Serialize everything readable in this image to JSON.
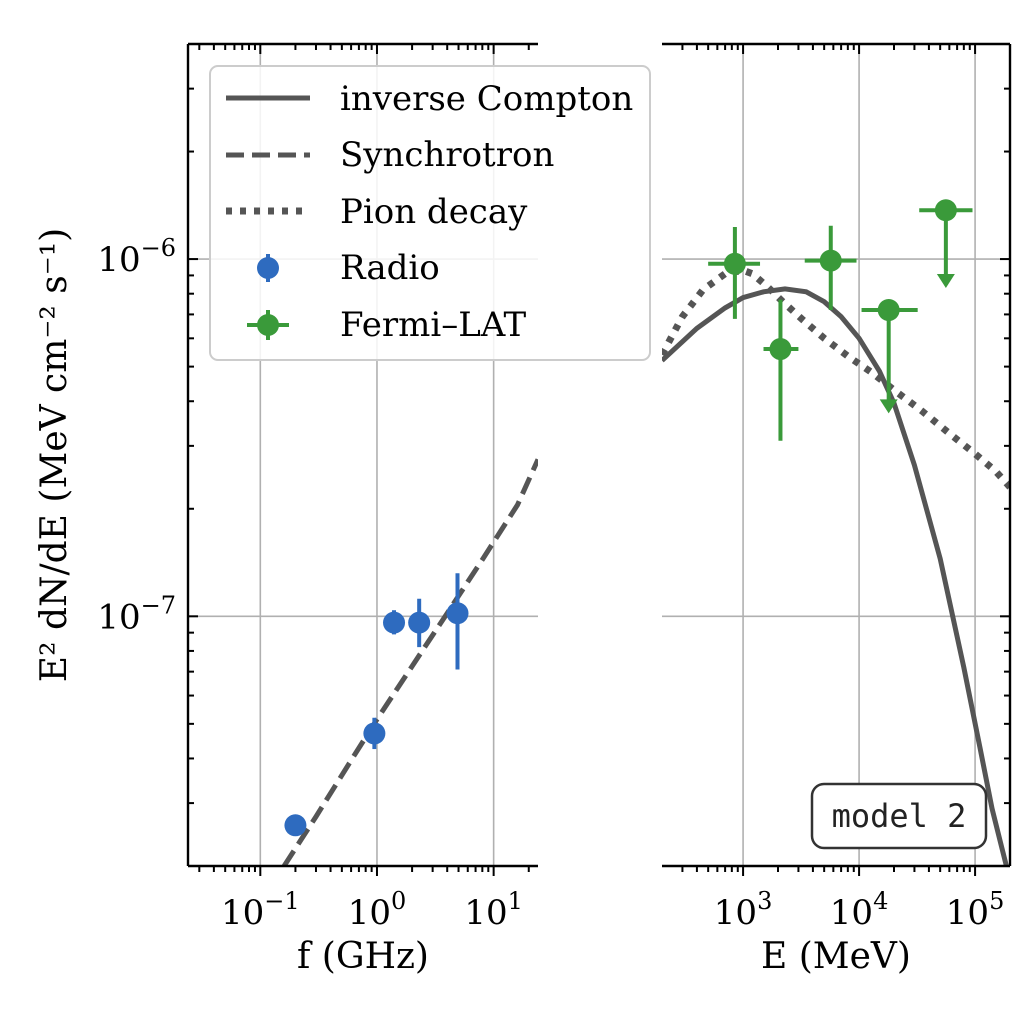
{
  "chart_data": [
    {
      "type": "scatter",
      "panel": "left",
      "xlabel": "f (GHz)",
      "ylabel": "E² dN/dE (MeV cm⁻² s⁻¹)",
      "xscale": "log",
      "yscale": "log",
      "xlim": [
        0.024,
        24
      ],
      "ylim": [
        2e-08,
        4e-06
      ],
      "x_ticks": [
        {
          "value": 0.1,
          "base": "10",
          "exp": "−1"
        },
        {
          "value": 1,
          "base": "10",
          "exp": "0"
        },
        {
          "value": 10,
          "base": "10",
          "exp": "1"
        }
      ],
      "y_ticks": [
        {
          "value": 1e-06,
          "base": "10",
          "exp": "−6"
        },
        {
          "value": 1e-07,
          "base": "10",
          "exp": "−7"
        }
      ],
      "grid": true,
      "series": [
        {
          "name": "Radio",
          "kind": "errorbar",
          "color": "#2e6bbf",
          "points": [
            {
              "x": 0.2,
              "y": 2.6e-08,
              "ylo": 2.6e-08,
              "yhi": 2.6e-08
            },
            {
              "x": 0.95,
              "y": 4.7e-08,
              "ylo": 4.25e-08,
              "yhi": 5.2e-08
            },
            {
              "x": 1.4,
              "y": 9.6e-08,
              "ylo": 8.9e-08,
              "yhi": 1.04e-07
            },
            {
              "x": 2.3,
              "y": 9.6e-08,
              "ylo": 8.2e-08,
              "yhi": 1.12e-07
            },
            {
              "x": 4.9,
              "y": 1.02e-07,
              "ylo": 7.1e-08,
              "yhi": 1.32e-07
            }
          ]
        },
        {
          "name": "Synchrotron",
          "kind": "line",
          "style": "dashed",
          "color": "#555555",
          "x": [
            0.16,
            0.3,
            0.6,
            1.0,
            2.0,
            4.0,
            8.0,
            16.0,
            24.0
          ],
          "y": [
            2e-08,
            2.75e-08,
            3.95e-08,
            5.15e-08,
            7.25e-08,
            1.02e-07,
            1.44e-07,
            2.05e-07,
            2.75e-07
          ]
        }
      ]
    },
    {
      "type": "scatter",
      "panel": "right",
      "xlabel": "E (MeV)",
      "xscale": "log",
      "yscale": "log",
      "xlim": [
        200,
        200000
      ],
      "ylim": [
        2e-08,
        4e-06
      ],
      "x_ticks": [
        {
          "value": 1000,
          "base": "10",
          "exp": "3"
        },
        {
          "value": 10000,
          "base": "10",
          "exp": "4"
        },
        {
          "value": 100000,
          "base": "10",
          "exp": "5"
        }
      ],
      "grid": true,
      "series": [
        {
          "name": "Fermi–LAT",
          "kind": "errorbar",
          "color": "#3a9a3a",
          "points": [
            {
              "x": 850,
              "y": 9.7e-07,
              "xlo": 500,
              "xhi": 1400,
              "ylo": 6.8e-07,
              "yhi": 1.23e-06,
              "upper_limit": false
            },
            {
              "x": 2100,
              "y": 5.6e-07,
              "xlo": 1500,
              "xhi": 3000,
              "ylo": 3.1e-07,
              "yhi": 7.7e-07,
              "upper_limit": false
            },
            {
              "x": 5700,
              "y": 9.9e-07,
              "xlo": 3400,
              "xhi": 9500,
              "ylo": 7.2e-07,
              "yhi": 1.24e-06,
              "upper_limit": false
            },
            {
              "x": 18000,
              "y": 7.2e-07,
              "xlo": 10500,
              "xhi": 32000,
              "upper_limit": true,
              "arrow_to": 3.7e-07
            },
            {
              "x": 56000,
              "y": 1.37e-06,
              "xlo": 33000,
              "xhi": 95000,
              "upper_limit": true,
              "arrow_to": 8.3e-07
            }
          ]
        },
        {
          "name": "inverse Compton",
          "kind": "line",
          "style": "solid",
          "color": "#555555",
          "x": [
            200,
            400,
            700,
            1000,
            1500,
            2300,
            3500,
            5000,
            7000,
            10000,
            15000,
            20000,
            30000,
            50000,
            80000,
            110000,
            140000,
            170000,
            190000
          ],
          "y": [
            5.2e-07,
            6.4e-07,
            7.3e-07,
            7.8e-07,
            8.1e-07,
            8.25e-07,
            8.1e-07,
            7.6e-07,
            6.9e-07,
            6e-07,
            4.85e-07,
            3.95e-07,
            2.65e-07,
            1.45e-07,
            7.2e-08,
            4.3e-08,
            2.9e-08,
            2.25e-08,
            1.95e-08
          ]
        },
        {
          "name": "Pion decay",
          "kind": "line",
          "style": "dotted",
          "color": "#555555",
          "x": [
            200,
            300,
            450,
            700,
            1000,
            1200,
            1600,
            2200,
            3200,
            5000,
            8000,
            13000,
            20000,
            35000,
            60000,
            100000,
            150000,
            200000
          ],
          "y": [
            5.4e-07,
            6.9e-07,
            8.2e-07,
            9.1e-07,
            9.3e-07,
            9.1e-07,
            8.4e-07,
            7.6e-07,
            6.8e-07,
            6e-07,
            5.35e-07,
            4.8e-07,
            4.3e-07,
            3.75e-07,
            3.25e-07,
            2.85e-07,
            2.55e-07,
            2.3e-07
          ]
        }
      ]
    }
  ],
  "legend": {
    "location": "upper-left",
    "entries": [
      {
        "label": "inverse Compton",
        "style": "solid",
        "color": "#555555"
      },
      {
        "label": "Synchrotron",
        "style": "dashed",
        "color": "#555555"
      },
      {
        "label": "Pion decay",
        "style": "dotted",
        "color": "#555555"
      },
      {
        "label": "Radio",
        "style": "errorbar-point",
        "color": "#2e6bbf"
      },
      {
        "label": "Fermi–LAT",
        "style": "errorbar-cross",
        "color": "#3a9a3a"
      }
    ]
  },
  "annotation": {
    "text": "model 2",
    "location": "lower-right"
  }
}
